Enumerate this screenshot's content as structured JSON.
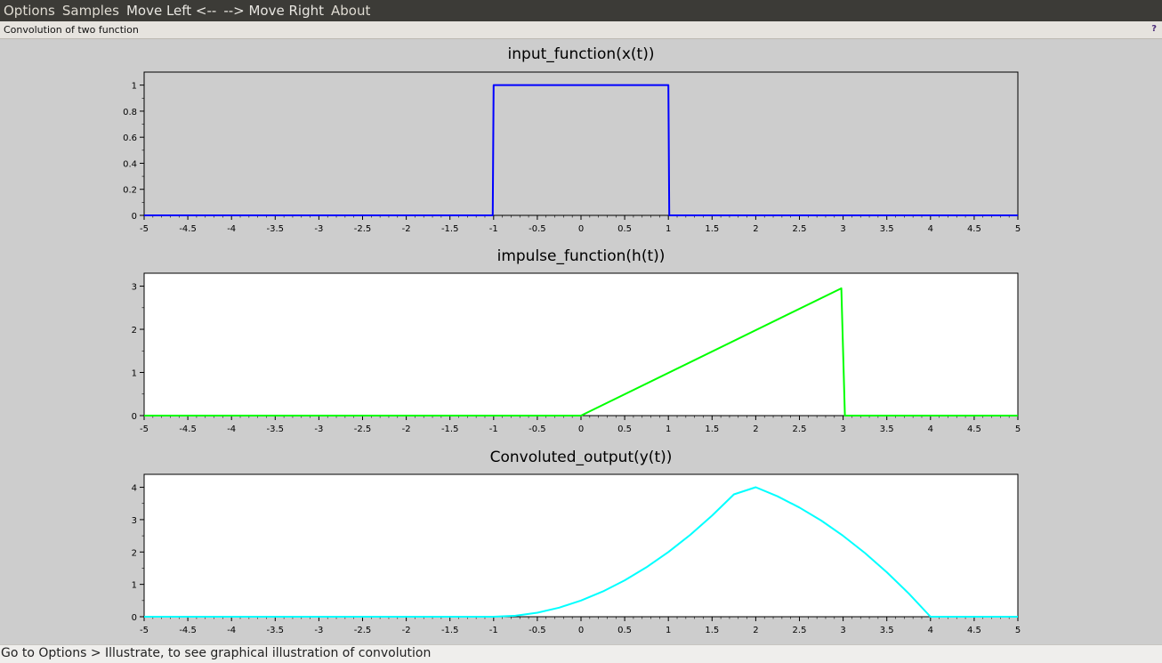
{
  "menubar": {
    "items": [
      "Options",
      "Samples",
      "Move Left <--",
      "--> Move Right",
      "About"
    ]
  },
  "window": {
    "title": "Convolution of two function",
    "help_label": "?"
  },
  "status": {
    "text": "Go to Options > Illustrate, to see graphical illustration of convolution"
  },
  "colors": {
    "input": "#0000ff",
    "impulse": "#00ff00",
    "output": "#00ffff",
    "plot_bg_input": "#cdcdcd",
    "plot_bg_other": "#ffffff"
  },
  "chart_data": [
    {
      "type": "line",
      "title": "input_function(x(t))",
      "xlabel": "",
      "ylabel": "",
      "xlim": [
        -5,
        5
      ],
      "ylim": [
        0,
        1.1
      ],
      "xticks": [
        "-5",
        "-4.5",
        "-4",
        "-3.5",
        "-3",
        "-2.5",
        "-2",
        "-1.5",
        "-1",
        "-0.5",
        "0",
        "0.5",
        "1",
        "1.5",
        "2",
        "2.5",
        "3",
        "3.5",
        "4",
        "4.5",
        "5"
      ],
      "yticks": [
        "0",
        "0.2",
        "0.4",
        "0.6",
        "0.8",
        "1"
      ],
      "series": [
        {
          "color": "#0000ff",
          "x": [
            -5,
            -1.01,
            -1,
            1,
            1.01,
            5
          ],
          "y": [
            0,
            0,
            1,
            1,
            0,
            0
          ]
        }
      ]
    },
    {
      "type": "line",
      "title": "impulse_function(h(t))",
      "xlabel": "",
      "ylabel": "",
      "xlim": [
        -5,
        5
      ],
      "ylim": [
        0,
        3.3
      ],
      "xticks": [
        "-5",
        "-4.5",
        "-4",
        "-3.5",
        "-3",
        "-2.5",
        "-2",
        "-1.5",
        "-1",
        "-0.5",
        "0",
        "0.5",
        "1",
        "1.5",
        "2",
        "2.5",
        "3",
        "3.5",
        "4",
        "4.5",
        "5"
      ],
      "yticks": [
        "0",
        "1",
        "2",
        "3"
      ],
      "series": [
        {
          "color": "#00ff00",
          "x": [
            -5,
            0,
            2.98,
            3.02,
            5
          ],
          "y": [
            0,
            0,
            2.95,
            0,
            0
          ]
        }
      ]
    },
    {
      "type": "line",
      "title": "Convoluted_output(y(t))",
      "xlabel": "",
      "ylabel": "",
      "xlim": [
        -5,
        5
      ],
      "ylim": [
        0,
        4.4
      ],
      "xticks": [
        "-5",
        "-4.5",
        "-4",
        "-3.5",
        "-3",
        "-2.5",
        "-2",
        "-1.5",
        "-1",
        "-0.5",
        "0",
        "0.5",
        "1",
        "1.5",
        "2",
        "2.5",
        "3",
        "3.5",
        "4",
        "4.5",
        "5"
      ],
      "yticks": [
        "0",
        "1",
        "2",
        "3",
        "4"
      ],
      "series": [
        {
          "color": "#00ffff",
          "x": [
            -5,
            -1,
            -0.75,
            -0.5,
            -0.25,
            0,
            0.25,
            0.5,
            0.75,
            1,
            1.25,
            1.5,
            1.75,
            2,
            2.25,
            2.5,
            2.75,
            3,
            3.25,
            3.5,
            3.75,
            4,
            5
          ],
          "y": [
            0,
            0,
            0.03,
            0.125,
            0.28,
            0.5,
            0.78,
            1.125,
            1.53,
            2.0,
            2.53,
            3.125,
            3.78,
            4.0,
            3.72,
            3.375,
            2.97,
            2.5,
            1.97,
            1.375,
            0.72,
            0,
            0
          ]
        }
      ]
    }
  ]
}
